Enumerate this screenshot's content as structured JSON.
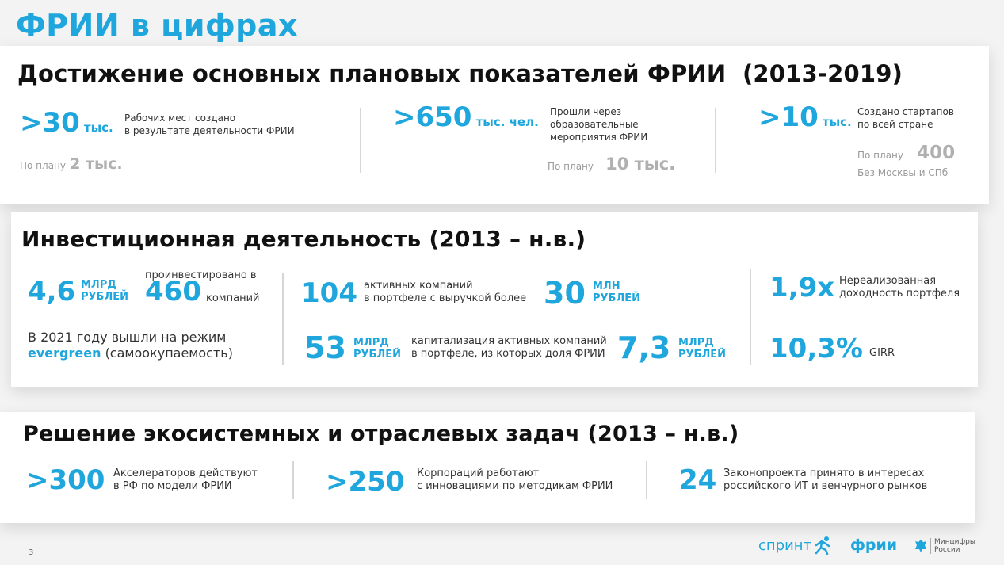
{
  "page_title": "ФРИИ в цифрах",
  "section1": {
    "title": "Достижение основных плановых показателей ФРИИ  (2013-2019)",
    "items": [
      {
        "value": ">30",
        "unit": "тыс.",
        "caption": [
          "Рабочих мест создано",
          "в результате деятельности ФРИИ"
        ],
        "plan_label": "По плану",
        "plan_value": "2 тыс."
      },
      {
        "value": ">650",
        "unit": "тыс. чел.",
        "caption": [
          "Прошли через",
          "образовательные",
          "мероприятия ФРИИ"
        ],
        "plan_label": "По плану",
        "plan_value": "10 тыс."
      },
      {
        "value": ">10",
        "unit": "тыс.",
        "caption": [
          "Создано стартапов",
          "по всей стране"
        ],
        "plan_label": "По плану",
        "plan_value": "400",
        "note": "Без Москвы и СПб"
      }
    ]
  },
  "section2": {
    "title": "Инвестиционная деятельность (2013 – н.в.)",
    "invested": {
      "value": "4,6",
      "unit": [
        "МЛРД",
        "РУБЛЕЙ"
      ],
      "caption_top": "проинвестировано в",
      "companies_value": "460",
      "companies_label": "компаний"
    },
    "evergreen": {
      "line1": "В 2021 году вышли на режим",
      "highlight": "evergreen",
      "rest": "(самоокупаемость)"
    },
    "active": {
      "value": "104",
      "caption": [
        "активных компаний",
        "в портфеле с выручкой более"
      ],
      "threshold_value": "30",
      "threshold_unit": [
        "МЛН",
        "РУБЛЕЙ"
      ]
    },
    "capitalization": {
      "value": "53",
      "unit": [
        "МЛРД",
        "РУБЛЕЙ"
      ],
      "caption": [
        "капитализация активных компаний",
        "в портфеле, из которых доля ФРИИ"
      ],
      "share_value": "7,3",
      "share_unit": [
        "МЛРД",
        "РУБЛЕЙ"
      ]
    },
    "unrealized": {
      "value": "1,9x",
      "caption": [
        "Нереализованная",
        "доходность портфеля"
      ]
    },
    "girr": {
      "value": "10,3%",
      "label": "GIRR"
    }
  },
  "section3": {
    "title": "Решение экосистемных и отраслевых задач (2013 – н.в.)",
    "items": [
      {
        "value": ">300",
        "caption": [
          "Акселераторов действуют",
          "в РФ по модели ФРИИ"
        ]
      },
      {
        "value": ">250",
        "caption": [
          "Корпораций работают",
          "с инновациями по методикам ФРИИ"
        ]
      },
      {
        "value": "24",
        "caption": [
          "Законопроекта принято в интересах",
          "российского ИТ и венчурного рынков"
        ]
      }
    ]
  },
  "footer": {
    "page_number": "3",
    "logo_sprint": "спринт",
    "logo_frii": "фрии",
    "logo_ministry": [
      "Минцифры",
      "России"
    ]
  },
  "colors": {
    "accent": "#1fa6dc",
    "muted": "#9a9a9a"
  }
}
